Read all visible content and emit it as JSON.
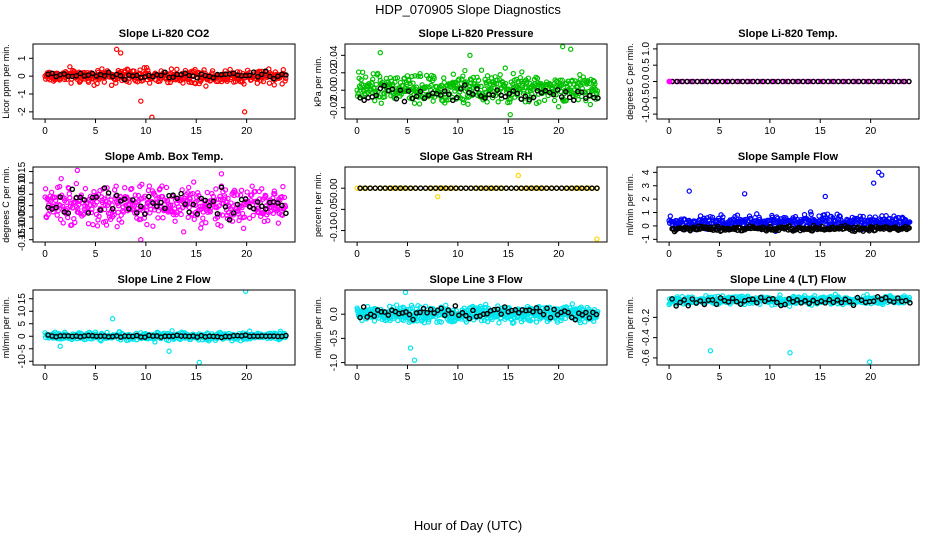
{
  "page": {
    "title": "HDP_070905  Slope Diagnostics",
    "xlabel": "Hour of Day (UTC)"
  },
  "chart_data": [
    {
      "type": "scatter",
      "title": "Slope Li-820 CO2",
      "ylabel": "Licor ppm per min.",
      "xlim": [
        -1.2,
        24.8
      ],
      "ylim": [
        -2.4,
        1.8
      ],
      "yticks": [
        -2,
        -1,
        0,
        1
      ],
      "ytick_labels": [
        "-2",
        "-1",
        "0",
        "1"
      ],
      "xticks": [
        0,
        5,
        10,
        15,
        20
      ],
      "colors": [
        "#ff0000"
      ],
      "bg": {
        "center": 0,
        "spread": 0.4,
        "step": 0.06,
        "outliers": [
          [
            7.1,
            1.5
          ],
          [
            7.5,
            1.3
          ],
          [
            10.6,
            -2.3
          ],
          [
            9.5,
            -1.4
          ],
          [
            19.8,
            -2.0
          ]
        ]
      },
      "fg": {
        "color": "#000000",
        "center": 0.05,
        "spread": 0.2,
        "step": 0.4
      }
    },
    {
      "type": "scatter",
      "title": "Slope Li-820 Pressure",
      "ylabel": "kPa per min.",
      "xlim": [
        -1.2,
        24.8
      ],
      "ylim": [
        -0.033,
        0.053
      ],
      "yticks": [
        -0.02,
        0,
        0.02,
        0.04
      ],
      "ytick_labels": [
        "-0.02",
        "0.00",
        "0.02",
        "0.04"
      ],
      "xticks": [
        0,
        5,
        10,
        15,
        20
      ],
      "colors": [
        "#00c000"
      ],
      "bg": {
        "center": 0.002,
        "spread": 0.016,
        "step": 0.05,
        "outliers": [
          [
            20.4,
            0.05
          ],
          [
            21.2,
            0.047
          ],
          [
            15.2,
            -0.028
          ],
          [
            11.2,
            0.04
          ],
          [
            2.3,
            0.043
          ]
        ]
      },
      "fg": {
        "color": "#000000",
        "center": -0.005,
        "spread": 0.008,
        "step": 0.4
      }
    },
    {
      "type": "scatter",
      "title": "Slope Li-820 Temp.",
      "ylabel": "degrees C per min.",
      "xlim": [
        -1.2,
        24.8
      ],
      "ylim": [
        -1.15,
        1.15
      ],
      "yticks": [
        -1,
        -0.5,
        0,
        0.5,
        1
      ],
      "ytick_labels": [
        "-1.0",
        "-0.5",
        "0.0",
        "0.5",
        "1.0"
      ],
      "xticks": [
        0,
        5,
        10,
        15,
        20
      ],
      "colors": [
        "#ff00ff"
      ],
      "bg": {
        "center": 0,
        "spread": 0,
        "step": 0.35,
        "outliers": []
      },
      "fg": {
        "color": "#000000",
        "center": 0,
        "spread": 0,
        "step": 0.5
      }
    },
    {
      "type": "scatter",
      "title": "Slope Amb. Box Temp.",
      "ylabel": "degrees C per min.",
      "xlim": [
        -1.2,
        24.8
      ],
      "ylim": [
        -0.16,
        0.17
      ],
      "yticks": [
        -0.15,
        -0.1,
        -0.05,
        0,
        0.05,
        0.1,
        0.15
      ],
      "ytick_labels": [
        "-0.15",
        "-0.10",
        "-0.05",
        "0.00",
        "0.05",
        "0.10",
        "0.15"
      ],
      "xticks": [
        0,
        5,
        10,
        15,
        20
      ],
      "colors": [
        "#ff00ff"
      ],
      "bg": {
        "center": 0,
        "spread": 0.08,
        "step": 0.05,
        "outliers": [
          [
            3.2,
            0.155
          ],
          [
            9.5,
            -0.15
          ],
          [
            17.5,
            0.14
          ]
        ]
      },
      "fg": {
        "color": "#000000",
        "center": 0.01,
        "spread": 0.06,
        "step": 0.4
      }
    },
    {
      "type": "scatter",
      "title": "Slope Gas Stream RH",
      "ylabel": "percent per min.",
      "xlim": [
        -1.2,
        24.8
      ],
      "ylim": [
        -0.127,
        0.05
      ],
      "yticks": [
        -0.1,
        -0.05,
        0
      ],
      "ytick_labels": [
        "-0.10",
        "-0.05",
        "0.00"
      ],
      "xticks": [
        0,
        5,
        10,
        15,
        20
      ],
      "colors": [
        "#ffd700"
      ],
      "bg": {
        "center": 0,
        "spread": 0,
        "step": 0.45,
        "outliers": [
          [
            16.0,
            0.03
          ],
          [
            8.0,
            -0.02
          ],
          [
            23.8,
            -0.12
          ]
        ]
      },
      "fg": {
        "color": "#000000",
        "center": 0,
        "spread": 0,
        "step": 0.5
      }
    },
    {
      "type": "scatter",
      "title": "Slope Sample Flow",
      "ylabel": "ml/min per min.",
      "xlim": [
        -1.2,
        24.8
      ],
      "ylim": [
        -1.2,
        4.4
      ],
      "yticks": [
        -1,
        0,
        1,
        2,
        3,
        4
      ],
      "ytick_labels": [
        "-1",
        "0",
        "1",
        "2",
        "3",
        "4"
      ],
      "xticks": [
        0,
        5,
        10,
        15,
        20
      ],
      "colors": [
        "#0000ff"
      ],
      "bg": {
        "center": 0.3,
        "spread": 0.5,
        "step": 0.06,
        "outliers": [
          [
            20.8,
            4.0
          ],
          [
            21.1,
            3.8
          ],
          [
            20.3,
            3.2
          ],
          [
            2.0,
            2.6
          ],
          [
            7.5,
            2.4
          ],
          [
            15.5,
            2.2
          ]
        ]
      },
      "fg": {
        "color": "#000000",
        "center": -0.2,
        "spread": 0.2,
        "step": 0.12
      }
    },
    {
      "type": "scatter",
      "title": "Slope Line 2 Flow",
      "ylabel": "ml/min per min.",
      "xlim": [
        -1.2,
        24.8
      ],
      "ylim": [
        -11.5,
        18.5
      ],
      "yticks": [
        -10,
        -5,
        0,
        5,
        10,
        15
      ],
      "ytick_labels": [
        "-10",
        "-5",
        "0",
        "5",
        "10",
        "15"
      ],
      "xticks": [
        0,
        5,
        10,
        15,
        20
      ],
      "colors": [
        "#00e5ee"
      ],
      "bg": {
        "center": 0,
        "spread": 1.5,
        "step": 0.05,
        "outliers": [
          [
            19.9,
            18.0
          ],
          [
            15.3,
            -10.5
          ],
          [
            6.7,
            7.0
          ],
          [
            1.5,
            -4.0
          ],
          [
            12.3,
            -6.0
          ]
        ]
      },
      "fg": {
        "color": "#000000",
        "center": 0,
        "spread": 0.4,
        "step": 0.4
      }
    },
    {
      "type": "scatter",
      "title": "Slope Line 3 Flow",
      "ylabel": "ml/min per min.",
      "xlim": [
        -1.2,
        24.8
      ],
      "ylim": [
        -1.05,
        0.5
      ],
      "yticks": [
        -1,
        -0.5,
        0
      ],
      "ytick_labels": [
        "-1.0",
        "-0.5",
        "0.0"
      ],
      "xticks": [
        0,
        5,
        10,
        15,
        20
      ],
      "colors": [
        "#00e5ee"
      ],
      "bg": {
        "center": 0,
        "spread": 0.16,
        "step": 0.04,
        "outliers": [
          [
            4.8,
            0.45
          ],
          [
            5.7,
            -0.95
          ],
          [
            5.3,
            -0.7
          ]
        ]
      },
      "fg": {
        "color": "#000000",
        "center": 0.02,
        "spread": 0.13,
        "step": 0.35
      }
    },
    {
      "type": "scatter",
      "title": "Slope Line 4 (LT) Flow",
      "ylabel": "ml/min per min.",
      "xlim": [
        -1.2,
        24.8
      ],
      "ylim": [
        -0.67,
        0.07
      ],
      "yticks": [
        -0.6,
        -0.4,
        -0.2
      ],
      "ytick_labels": [
        "-0.6",
        "-0.4",
        "-0.2"
      ],
      "xticks": [
        0,
        5,
        10,
        15,
        20
      ],
      "colors": [
        "#00e5ee"
      ],
      "bg": {
        "center": -0.03,
        "spread": 0.04,
        "step": 0.05,
        "outliers": [
          [
            4.1,
            -0.53
          ],
          [
            12.0,
            -0.55
          ],
          [
            19.9,
            -0.64
          ]
        ]
      },
      "fg": {
        "color": "#000000",
        "center": -0.04,
        "spread": 0.04,
        "step": 0.4
      }
    }
  ]
}
